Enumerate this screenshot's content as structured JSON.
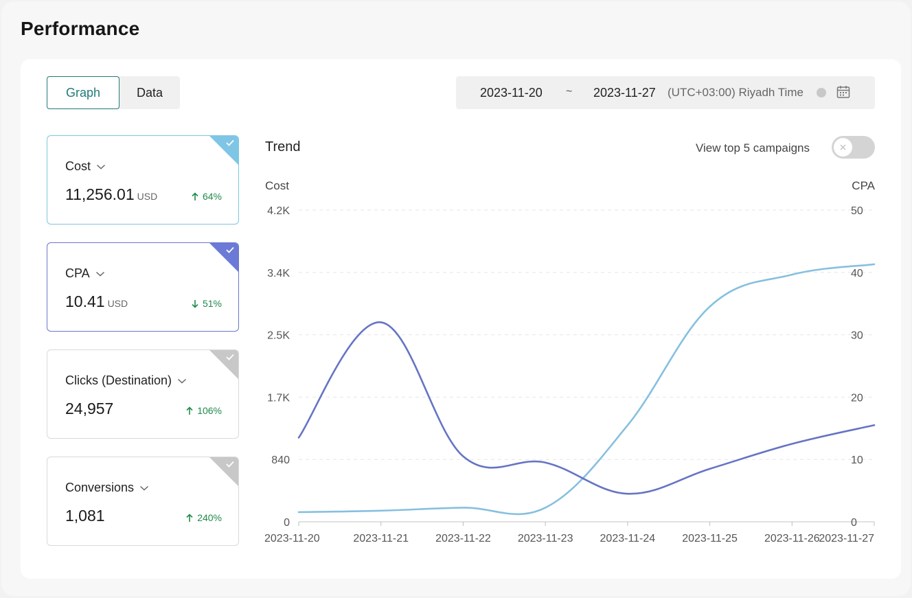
{
  "page": {
    "title": "Performance"
  },
  "tabs": {
    "graph": "Graph",
    "data": "Data"
  },
  "daterange": {
    "start": "2023-11-20",
    "separator": "~",
    "end": "2023-11-27",
    "timezone": "(UTC+03:00) Riyadh Time"
  },
  "metrics": [
    {
      "name": "Cost",
      "value": "11,256.01",
      "unit": "USD",
      "direction": "up",
      "change": "64%",
      "selected": true,
      "color": "#7fc6e6"
    },
    {
      "name": "CPA",
      "value": "10.41",
      "unit": "USD",
      "direction": "down",
      "change": "51%",
      "selected": true,
      "color": "#6b7ad6"
    },
    {
      "name": "Clicks (Destination)",
      "value": "24,957",
      "unit": "",
      "direction": "up",
      "change": "106%",
      "selected": false,
      "color": "#c8c8c8"
    },
    {
      "name": "Conversions",
      "value": "1,081",
      "unit": "",
      "direction": "up",
      "change": "240%",
      "selected": false,
      "color": "#c8c8c8"
    }
  ],
  "trend": {
    "title": "Trend",
    "top5_label": "View top 5 campaigns",
    "top5_enabled": false
  },
  "chart_data": {
    "type": "line",
    "x": [
      "2023-11-20",
      "2023-11-21",
      "2023-11-22",
      "2023-11-23",
      "2023-11-24",
      "2023-11-25",
      "2023-11-26",
      "2023-11-27"
    ],
    "left_axis": {
      "label": "Cost",
      "ticks": [
        "0",
        "840",
        "1.7K",
        "2.5K",
        "3.4K",
        "4.2K"
      ],
      "range": [
        0,
        4200
      ]
    },
    "right_axis": {
      "label": "CPA",
      "ticks": [
        "0",
        "10",
        "20",
        "30",
        "40",
        "50"
      ],
      "range": [
        0,
        50
      ]
    },
    "series": [
      {
        "name": "Cost",
        "axis": "left",
        "color": "#86c0df",
        "values": [
          130,
          150,
          190,
          190,
          1300,
          2900,
          3330,
          3470
        ]
      },
      {
        "name": "CPA",
        "axis": "right",
        "color": "#6574c4",
        "values": [
          13.5,
          32,
          10.5,
          9.5,
          4.5,
          8.5,
          12.5,
          15.5
        ]
      }
    ],
    "grid": true,
    "legend": "none"
  }
}
